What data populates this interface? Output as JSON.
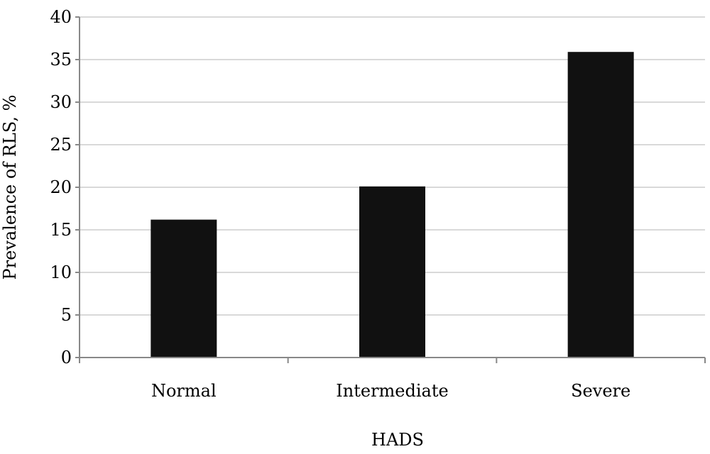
{
  "chart_data": {
    "type": "bar",
    "title": "",
    "xlabel": "HADS",
    "ylabel": "Prevalence of RLS, %",
    "categories": [
      "Normal",
      "Intermediate",
      "Severe"
    ],
    "values": [
      16.2,
      20.1,
      35.9
    ],
    "ylim": [
      0,
      40
    ],
    "yticks": [
      0,
      5,
      10,
      15,
      20,
      25,
      30,
      35,
      40
    ],
    "grid": true,
    "legend": "none",
    "colors": {
      "bar": "#111111",
      "grid": "#d9d9d9",
      "axis": "#888888",
      "text": "#000000"
    }
  }
}
